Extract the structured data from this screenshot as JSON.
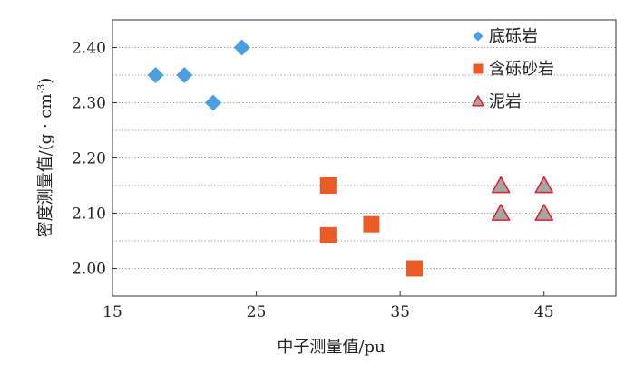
{
  "chart_data": {
    "type": "scatter",
    "xlabel": "中子测量值/pu",
    "ylabel": "密度测量值/(g · cm",
    "ylabel_sup": "-3",
    "ylabel_close": ")",
    "xlim": [
      15,
      50
    ],
    "ylim": [
      1.95,
      2.45
    ],
    "xticks": [
      15,
      25,
      35,
      45
    ],
    "yticks": [
      2.0,
      2.1,
      2.2,
      2.3,
      2.4
    ],
    "ytick_labels": [
      "2.00",
      "2.10",
      "2.20",
      "2.30",
      "2.40"
    ],
    "grid": "horizontal dotted, every 0.05",
    "legend_position": "top-right",
    "series": [
      {
        "name": "底砾岩",
        "marker": "diamond",
        "color": "#4a9fe0",
        "points": [
          [
            18.0,
            2.35
          ],
          [
            20.0,
            2.35
          ],
          [
            22.0,
            2.3
          ],
          [
            24.0,
            2.4
          ]
        ]
      },
      {
        "name": "含砾砂岩",
        "marker": "square",
        "color": "#ec5b26",
        "points": [
          [
            30.0,
            2.15
          ],
          [
            30.0,
            2.06
          ],
          [
            33.0,
            2.08
          ],
          [
            36.0,
            2.0
          ]
        ]
      },
      {
        "name": "泥岩",
        "marker": "triangle",
        "color": "#a6a6a6",
        "edgecolor": "#e0202a",
        "points": [
          [
            42.0,
            2.15
          ],
          [
            45.0,
            2.15
          ],
          [
            42.0,
            2.1
          ],
          [
            45.0,
            2.1
          ]
        ]
      }
    ]
  }
}
